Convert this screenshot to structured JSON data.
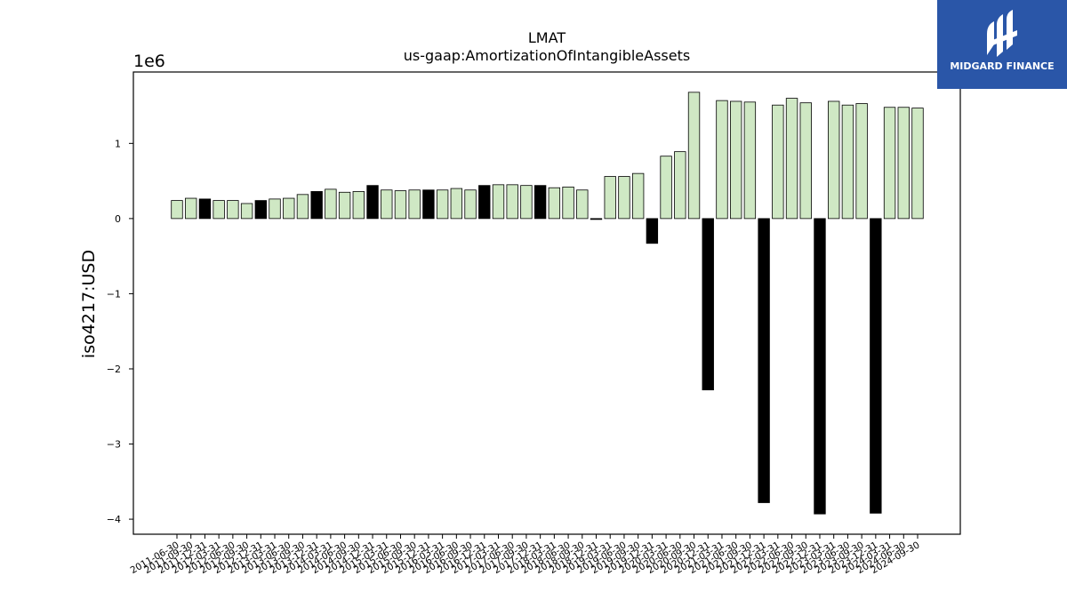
{
  "chart_data": {
    "type": "bar",
    "title": "LMAT",
    "subtitle": "us-gaap:AmortizationOfIntangibleAssets",
    "ylabel": "iso4217:USD",
    "xlabel": "",
    "y_scale_label": "1e6",
    "y_multiplier": 1000000,
    "ylim": [
      -4.2,
      1.95
    ],
    "yticks": [
      -4,
      -3,
      -2,
      -1,
      0,
      1
    ],
    "ytick_labels": [
      "−4",
      "−3",
      "−2",
      "−1",
      "0",
      "1"
    ],
    "grid": false,
    "colors": {
      "quarterly": "#cfe8c4",
      "annual": "#000000",
      "edge": "#000000"
    },
    "categories": [
      "2011-06-30",
      "2011-09-30",
      "2011-12-31",
      "2012-03-31",
      "2012-06-30",
      "2012-09-30",
      "2012-12-31",
      "2013-03-31",
      "2013-06-30",
      "2013-09-30",
      "2013-12-31",
      "2014-03-31",
      "2014-06-30",
      "2014-09-30",
      "2014-12-31",
      "2015-03-31",
      "2015-06-30",
      "2015-09-30",
      "2015-12-31",
      "2016-03-31",
      "2016-06-30",
      "2016-09-30",
      "2016-12-31",
      "2017-03-31",
      "2017-06-30",
      "2017-09-30",
      "2017-12-31",
      "2018-03-31",
      "2018-06-30",
      "2018-09-30",
      "2018-12-31",
      "2019-03-31",
      "2019-06-30",
      "2019-09-30",
      "2019-12-31",
      "2020-03-31",
      "2020-06-30",
      "2020-09-30",
      "2020-12-31",
      "2021-03-31",
      "2021-06-30",
      "2021-09-30",
      "2021-12-31",
      "2022-03-31",
      "2022-06-30",
      "2022-09-30",
      "2022-12-31",
      "2023-03-31",
      "2023-06-30",
      "2023-09-30",
      "2023-12-31",
      "2024-03-31",
      "2024-06-30",
      "2024-09-30"
    ],
    "values": [
      0.24,
      0.27,
      0.26,
      0.24,
      0.24,
      0.2,
      0.24,
      0.26,
      0.27,
      0.32,
      0.36,
      0.39,
      0.35,
      0.36,
      0.44,
      0.38,
      0.37,
      0.38,
      0.38,
      0.38,
      0.4,
      0.38,
      0.44,
      0.45,
      0.45,
      0.44,
      0.44,
      0.41,
      0.42,
      0.38,
      -0.01,
      0.56,
      0.56,
      0.6,
      -0.33,
      0.83,
      0.89,
      1.68,
      -2.28,
      1.57,
      1.56,
      1.55,
      -3.78,
      1.51,
      1.6,
      1.54,
      -3.93,
      1.56,
      1.51,
      1.53,
      -3.92,
      1.48,
      1.48,
      1.47
    ],
    "bar_styles": [
      "q",
      "q",
      "a",
      "q",
      "q",
      "q",
      "a",
      "q",
      "q",
      "q",
      "a",
      "q",
      "q",
      "q",
      "a",
      "q",
      "q",
      "q",
      "a",
      "q",
      "q",
      "q",
      "a",
      "q",
      "q",
      "q",
      "a",
      "q",
      "q",
      "q",
      "a",
      "q",
      "q",
      "q",
      "a",
      "q",
      "q",
      "q",
      "a",
      "q",
      "q",
      "q",
      "a",
      "q",
      "q",
      "q",
      "a",
      "q",
      "q",
      "q",
      "a",
      "q",
      "q",
      "q"
    ]
  },
  "logo": {
    "text": "MIDGARD FINANCE",
    "icon": "midgard-logo-icon"
  }
}
